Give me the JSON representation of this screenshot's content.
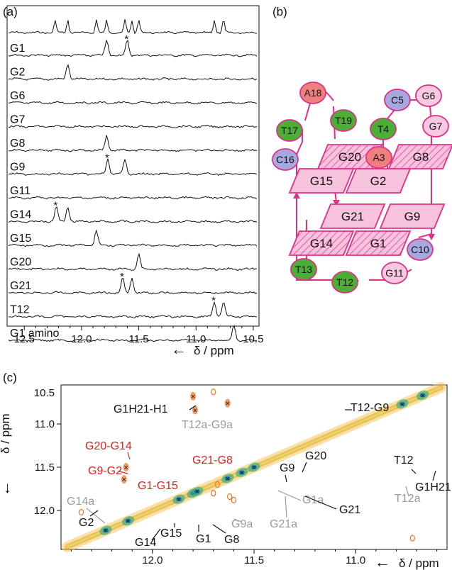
{
  "panel_a": {
    "label": "(a)",
    "xlabel": "δ / ppm",
    "arrow": "←",
    "xlim": [
      12.65,
      10.45
    ],
    "ticks": [
      "12.5",
      "12.0",
      "11.5",
      "11.0",
      "10.5"
    ],
    "tick_values": [
      12.5,
      12.0,
      11.5,
      11.0,
      10.5
    ],
    "top_trace_peaks": [
      12.23,
      12.12,
      11.87,
      11.78,
      11.62,
      11.56,
      11.5,
      10.84,
      10.76
    ],
    "traces": [
      {
        "name": "G1",
        "peaks": [
          11.78,
          11.6
        ],
        "star": [
          11.6
        ]
      },
      {
        "name": "G2",
        "peaks": [
          12.12
        ],
        "star": []
      },
      {
        "name": "G6",
        "peaks": [],
        "star": []
      },
      {
        "name": "G7",
        "peaks": [],
        "star": []
      },
      {
        "name": "G8",
        "peaks": [
          11.78
        ],
        "star": []
      },
      {
        "name": "G9",
        "peaks": [
          11.77,
          11.62
        ],
        "star": [
          11.77
        ]
      },
      {
        "name": "G11",
        "peaks": [],
        "star": []
      },
      {
        "name": "G14",
        "peaks": [
          12.22,
          12.12
        ],
        "star": [
          12.22
        ]
      },
      {
        "name": "G15",
        "peaks": [
          11.87
        ],
        "star": []
      },
      {
        "name": "G20",
        "peaks": [
          11.5
        ],
        "star": []
      },
      {
        "name": "G21",
        "peaks": [
          11.64,
          11.56
        ],
        "star": [
          11.64
        ]
      },
      {
        "name": "T12",
        "peaks": [
          10.84,
          10.76
        ],
        "star": [
          10.84
        ]
      },
      {
        "name": "G1 amino",
        "peaks": [
          10.67
        ],
        "star": []
      }
    ]
  },
  "panel_b": {
    "label": "(b)",
    "nodes": [
      {
        "name": "A18",
        "color": "#f08080"
      },
      {
        "name": "T17",
        "color": "#4caf35"
      },
      {
        "name": "T19",
        "color": "#4caf35"
      },
      {
        "name": "C16",
        "color": "#a8a8e0"
      },
      {
        "name": "C5",
        "color": "#a8a8e0"
      },
      {
        "name": "G6",
        "color": "#f8c8e0"
      },
      {
        "name": "G7",
        "color": "#f8c8e0"
      },
      {
        "name": "T4",
        "color": "#4caf35"
      },
      {
        "name": "A3",
        "color": "#f08080"
      },
      {
        "name": "T13",
        "color": "#4caf35"
      },
      {
        "name": "T12",
        "color": "#4caf35"
      },
      {
        "name": "G11",
        "color": "#f8c8e0"
      },
      {
        "name": "C10",
        "color": "#a8a8e0"
      }
    ],
    "tiles": [
      "G20",
      "G8",
      "G15",
      "G2",
      "G21",
      "G9",
      "G14",
      "G1"
    ]
  },
  "panel_c": {
    "label": "(c)",
    "xlabel": "δ / ppm",
    "ylabel": "δ / ppm",
    "arrow": "←",
    "xlim": [
      12.45,
      10.55
    ],
    "ylim": [
      10.55,
      12.45
    ],
    "xticks": [
      "12.0",
      "11.5",
      "11.0"
    ],
    "xtick_values": [
      12.0,
      11.5,
      11.0
    ],
    "yticks": [
      "10.5",
      "11.0",
      "11.5",
      "12.0"
    ],
    "ytick_values": [
      10.5,
      11.0,
      11.5,
      12.0
    ],
    "labels": [
      {
        "text": "G1H21-H1",
        "color": "#111111"
      },
      {
        "text": "T12-G9",
        "color": "#111111"
      },
      {
        "text": "T12a-G9a",
        "color": "#9a9a9a"
      },
      {
        "text": "G20-G14",
        "color": "#e02020"
      },
      {
        "text": "G9-G2",
        "color": "#e02020"
      },
      {
        "text": "G21-G8",
        "color": "#e02020"
      },
      {
        "text": "G1-G15",
        "color": "#e02020"
      },
      {
        "text": "G14a",
        "color": "#9a9a9a"
      },
      {
        "text": "G2",
        "color": "#111111"
      },
      {
        "text": "G14",
        "color": "#111111"
      },
      {
        "text": "G15",
        "color": "#111111"
      },
      {
        "text": "G1",
        "color": "#111111"
      },
      {
        "text": "G8",
        "color": "#111111"
      },
      {
        "text": "G9",
        "color": "#111111"
      },
      {
        "text": "G9a",
        "color": "#9a9a9a"
      },
      {
        "text": "G20",
        "color": "#111111"
      },
      {
        "text": "G1a",
        "color": "#9a9a9a"
      },
      {
        "text": "G21a",
        "color": "#9a9a9a"
      },
      {
        "text": "G21",
        "color": "#111111"
      },
      {
        "text": "T12",
        "color": "#111111"
      },
      {
        "text": "T12a",
        "color": "#9a9a9a"
      },
      {
        "text": "G1H21",
        "color": "#111111"
      }
    ]
  },
  "chart_data": [
    {
      "type": "line",
      "xlabel": "δ / ppm",
      "xlim": [
        12.65,
        10.45
      ],
      "series": [
        {
          "name": "G1",
          "peaks_ppm": [
            11.78,
            11.6
          ]
        },
        {
          "name": "G2",
          "peaks_ppm": [
            12.12
          ]
        },
        {
          "name": "G6",
          "peaks_ppm": []
        },
        {
          "name": "G7",
          "peaks_ppm": []
        },
        {
          "name": "G8",
          "peaks_ppm": [
            11.78
          ]
        },
        {
          "name": "G9",
          "peaks_ppm": [
            11.77,
            11.62
          ]
        },
        {
          "name": "G11",
          "peaks_ppm": []
        },
        {
          "name": "G14",
          "peaks_ppm": [
            12.22,
            12.12
          ]
        },
        {
          "name": "G15",
          "peaks_ppm": [
            11.87
          ]
        },
        {
          "name": "G20",
          "peaks_ppm": [
            11.5
          ]
        },
        {
          "name": "G21",
          "peaks_ppm": [
            11.64,
            11.56
          ]
        },
        {
          "name": "T12",
          "peaks_ppm": [
            10.84,
            10.76
          ]
        },
        {
          "name": "G1 amino",
          "peaks_ppm": [
            10.67
          ]
        }
      ]
    },
    {
      "type": "scatter",
      "xlabel": "δ / ppm",
      "ylabel": "δ / ppm",
      "xlim": [
        12.45,
        10.55
      ],
      "ylim": [
        10.55,
        12.45
      ],
      "diagonal_peaks": [
        {
          "name": "G14",
          "x": 12.23,
          "y": 12.23
        },
        {
          "name": "G2",
          "x": 12.12,
          "y": 12.12
        },
        {
          "name": "G15",
          "x": 11.87,
          "y": 11.87
        },
        {
          "name": "G1",
          "x": 11.8,
          "y": 11.8
        },
        {
          "name": "G8",
          "x": 11.78,
          "y": 11.78
        },
        {
          "name": "G9",
          "x": 11.63,
          "y": 11.63
        },
        {
          "name": "G21",
          "x": 11.56,
          "y": 11.56
        },
        {
          "name": "G20",
          "x": 11.5,
          "y": 11.5
        },
        {
          "name": "T12",
          "x": 10.77,
          "y": 10.77
        },
        {
          "name": "G1H21",
          "x": 10.67,
          "y": 10.67
        }
      ],
      "cross_peaks": [
        {
          "name": "G1H21-H1",
          "x": 11.8,
          "y": 10.68
        },
        {
          "name": "T12a-G9a",
          "x": 11.79,
          "y": 10.84
        },
        {
          "name": "T12-G9",
          "x": 11.63,
          "y": 10.76
        },
        {
          "name": "G20-G14",
          "x": 12.13,
          "y": 11.5
        },
        {
          "name": "G9-G2",
          "x": 12.14,
          "y": 11.64
        }
      ]
    }
  ]
}
